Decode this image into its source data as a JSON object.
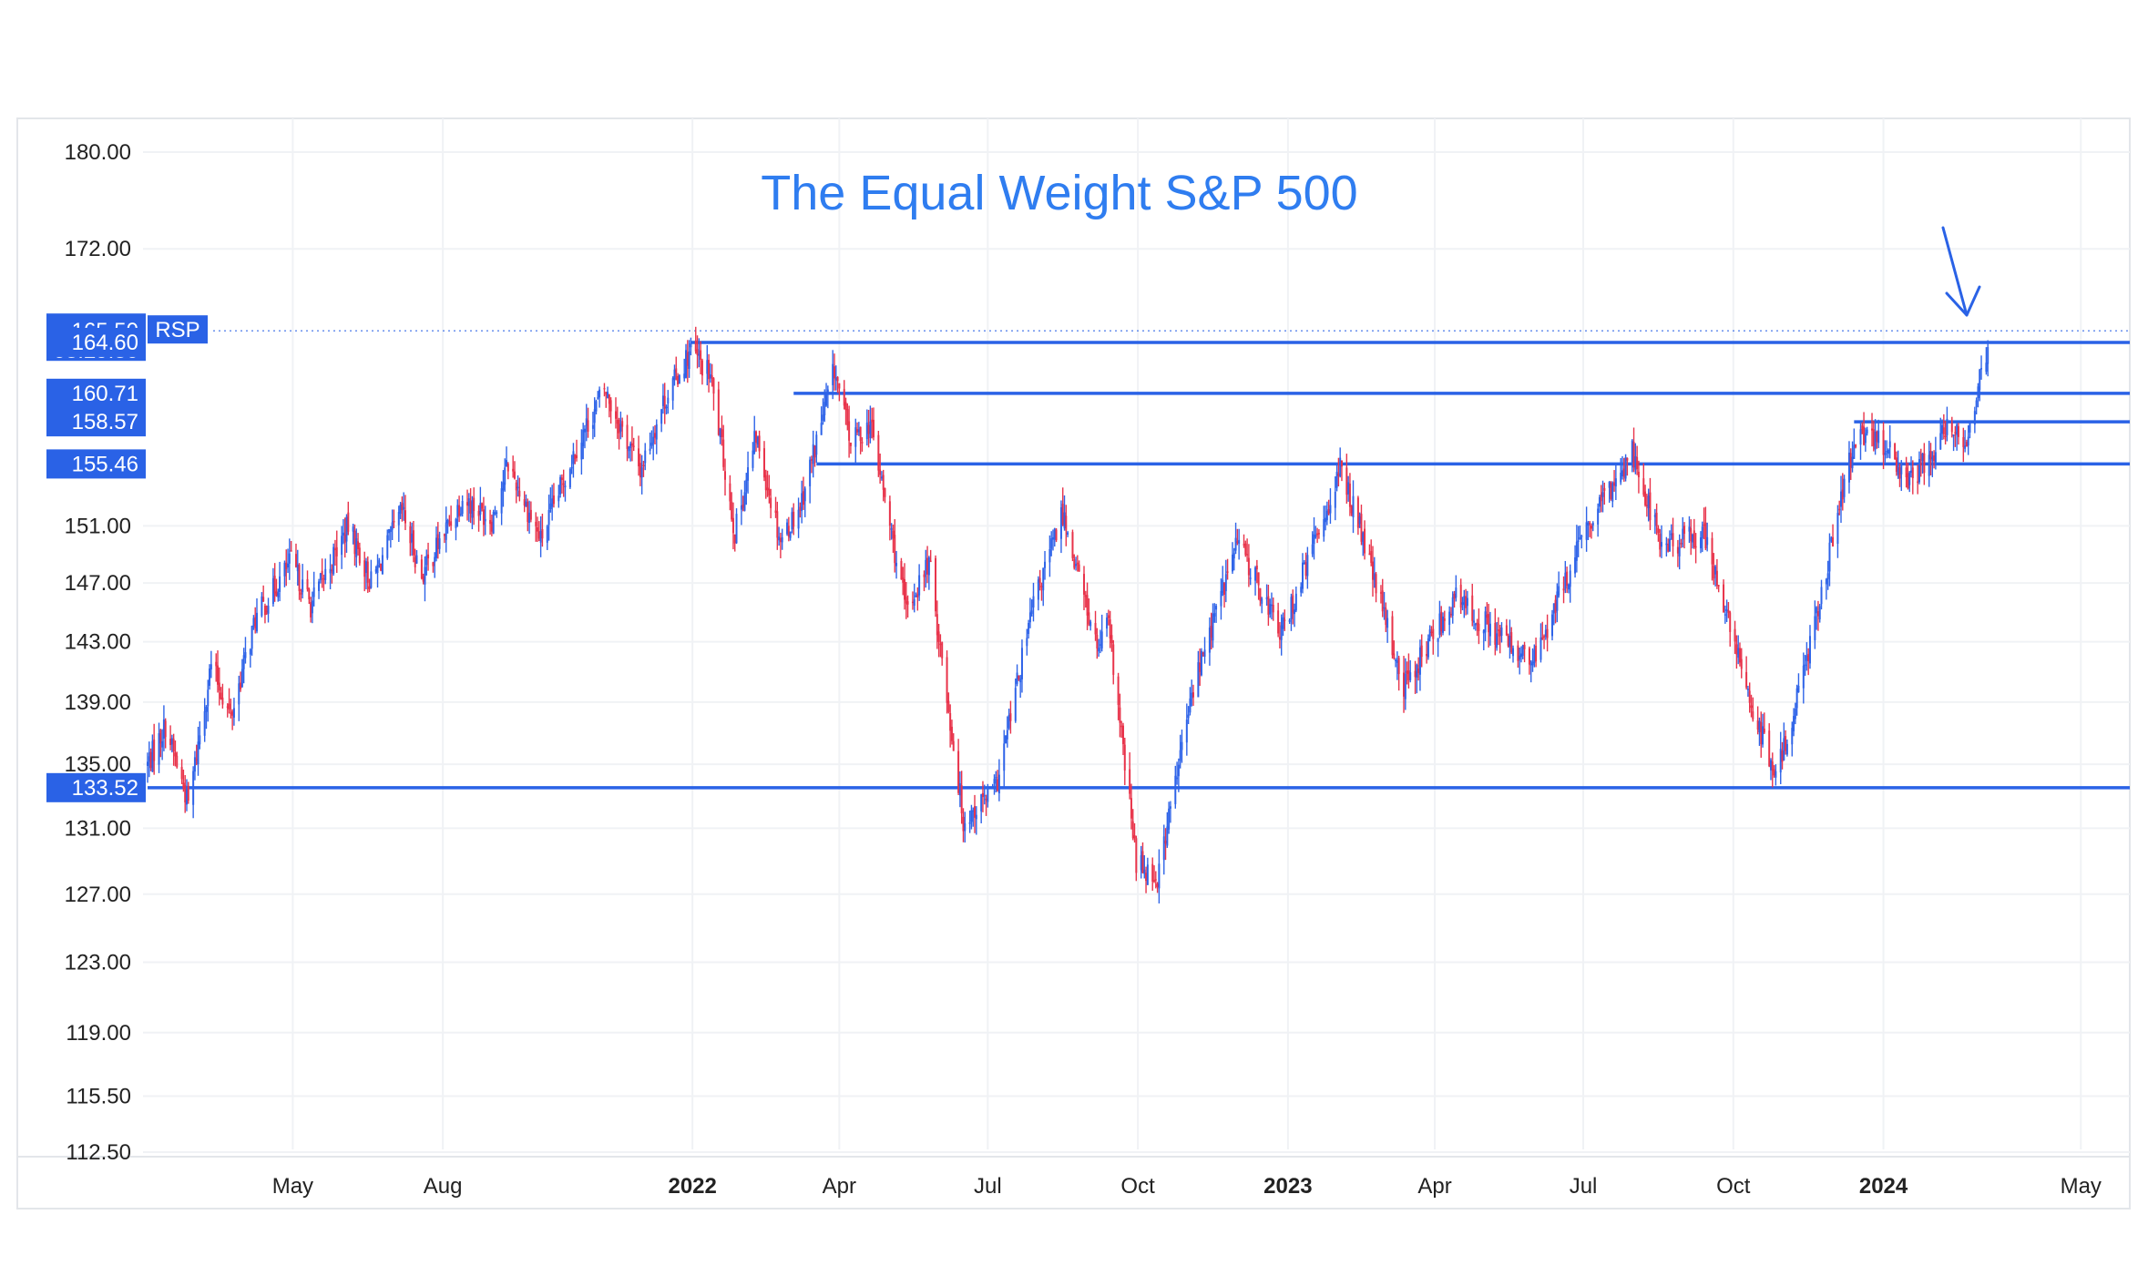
{
  "colors": {
    "up": "#2e63e8",
    "down": "#e8334a",
    "level": "#2a62e6",
    "title": "#2f7df0",
    "grid": "#f0f2f5",
    "frame": "#e3e6ea",
    "tag_bg": "#2a62e6",
    "tag_text": "#ffffff"
  },
  "chart_data": {
    "type": "candlestick",
    "title": "The Equal Weight S&P 500",
    "symbol": "RSP",
    "price_label": "165.50",
    "countdown": "03:29:30",
    "y_ticks": [
      "180.00",
      "172.00",
      "151.00",
      "147.00",
      "143.00",
      "139.00",
      "135.00",
      "131.00",
      "127.00",
      "123.00",
      "119.00",
      "115.50",
      "112.50"
    ],
    "x_ticks": [
      {
        "label": "May",
        "date": "2021-05-01",
        "bold": false
      },
      {
        "label": "Aug",
        "date": "2021-08-01",
        "bold": false
      },
      {
        "label": "2022",
        "date": "2022-01-01",
        "bold": true
      },
      {
        "label": "Apr",
        "date": "2022-04-01",
        "bold": false
      },
      {
        "label": "Jul",
        "date": "2022-07-01",
        "bold": false
      },
      {
        "label": "Oct",
        "date": "2022-10-01",
        "bold": false
      },
      {
        "label": "2023",
        "date": "2023-01-01",
        "bold": true
      },
      {
        "label": "Apr",
        "date": "2023-04-01",
        "bold": false
      },
      {
        "label": "Jul",
        "date": "2023-07-01",
        "bold": false
      },
      {
        "label": "Oct",
        "date": "2023-10-01",
        "bold": false
      },
      {
        "label": "2024",
        "date": "2024-01-01",
        "bold": true
      },
      {
        "label": "May",
        "date": "2024-05-01",
        "bold": false
      }
    ],
    "x_range": [
      "2021-02-01",
      "2024-05-31"
    ],
    "y_scale": "log",
    "y_range": [
      112.5,
      180.0
    ],
    "level_lines": [
      {
        "label": "",
        "value": 165.5,
        "start": "2021-12-31",
        "style": "dotted"
      },
      {
        "label": "164.60",
        "value": 164.6,
        "start": "2021-12-31",
        "style": "solid"
      },
      {
        "label": "160.71",
        "value": 160.71,
        "start": "2022-03-04",
        "style": "solid"
      },
      {
        "label": "158.57",
        "value": 158.57,
        "start": "2023-12-14",
        "style": "solid"
      },
      {
        "label": "155.46",
        "value": 155.46,
        "start": "2022-03-18",
        "style": "solid"
      },
      {
        "label": "133.52",
        "value": 133.52,
        "start": "2021-02-01",
        "style": "solid"
      }
    ],
    "annotation": {
      "type": "arrow",
      "points_to_date": "2024-03-06",
      "points_to_value": 165.5
    },
    "price_path": [
      [
        "2021-02-01",
        135.0
      ],
      [
        "2021-02-12",
        137.5
      ],
      [
        "2021-02-26",
        132.5
      ],
      [
        "2021-03-12",
        141.5
      ],
      [
        "2021-03-24",
        138.0
      ],
      [
        "2021-04-08",
        144.5
      ],
      [
        "2021-04-30",
        148.5
      ],
      [
        "2021-05-12",
        145.5
      ],
      [
        "2021-06-04",
        151.0
      ],
      [
        "2021-06-18",
        147.0
      ],
      [
        "2021-07-07",
        152.0
      ],
      [
        "2021-07-19",
        147.5
      ],
      [
        "2021-08-13",
        153.0
      ],
      [
        "2021-08-31",
        151.5
      ],
      [
        "2021-09-10",
        155.5
      ],
      [
        "2021-09-30",
        150.0
      ],
      [
        "2021-10-21",
        156.5
      ],
      [
        "2021-11-08",
        161.0
      ],
      [
        "2021-11-30",
        155.0
      ],
      [
        "2021-12-14",
        160.0
      ],
      [
        "2021-12-31",
        164.0
      ],
      [
        "2022-01-12",
        162.0
      ],
      [
        "2022-01-27",
        150.5
      ],
      [
        "2022-02-09",
        157.5
      ],
      [
        "2022-02-24",
        150.0
      ],
      [
        "2022-03-08",
        152.5
      ],
      [
        "2022-03-29",
        162.5
      ],
      [
        "2022-04-08",
        157.0
      ],
      [
        "2022-04-20",
        158.5
      ],
      [
        "2022-05-12",
        145.0
      ],
      [
        "2022-05-26",
        148.5
      ],
      [
        "2022-06-16",
        131.5
      ],
      [
        "2022-07-06",
        133.5
      ],
      [
        "2022-07-29",
        145.5
      ],
      [
        "2022-08-16",
        152.0
      ],
      [
        "2022-09-06",
        142.5
      ],
      [
        "2022-09-13",
        144.0
      ],
      [
        "2022-09-30",
        129.0
      ],
      [
        "2022-10-13",
        128.0
      ],
      [
        "2022-11-04",
        140.0
      ],
      [
        "2022-12-01",
        150.0
      ],
      [
        "2022-12-28",
        143.5
      ],
      [
        "2023-02-02",
        155.0
      ],
      [
        "2023-02-10",
        152.5
      ],
      [
        "2023-03-13",
        140.0
      ],
      [
        "2023-04-13",
        146.0
      ],
      [
        "2023-05-31",
        141.5
      ],
      [
        "2023-06-30",
        150.0
      ],
      [
        "2023-07-31",
        156.5
      ],
      [
        "2023-08-18",
        149.5
      ],
      [
        "2023-09-13",
        150.5
      ],
      [
        "2023-10-06",
        141.0
      ],
      [
        "2023-10-27",
        134.0
      ],
      [
        "2023-11-14",
        141.5
      ],
      [
        "2023-12-14",
        157.0
      ],
      [
        "2023-12-29",
        157.5
      ],
      [
        "2024-01-17",
        154.0
      ],
      [
        "2024-02-09",
        158.0
      ],
      [
        "2024-02-21",
        157.5
      ],
      [
        "2024-03-06",
        165.0
      ]
    ]
  }
}
